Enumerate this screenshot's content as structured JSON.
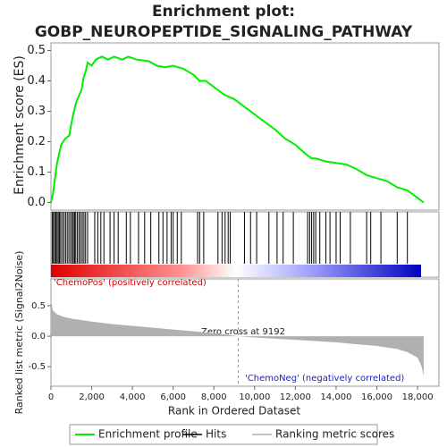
{
  "chart_data": {
    "type": "gsea",
    "title": "Enrichment plot:",
    "subtitle": "GOBP_NEUROPEPTIDE_SIGNALING_PATHWAY",
    "ylabel": "Enrichment score (ES)",
    "y2label": "Ranked list metric (Signal2Noise)",
    "xlabel": "Rank in Ordered Dataset",
    "xlim": [
      0,
      19050
    ],
    "xticks": [
      0,
      {
        "value": 2000,
        "label": "2,000"
      },
      {
        "value": 4000,
        "label": "4,000"
      },
      {
        "value": 6000,
        "label": "6,000"
      },
      {
        "value": 8000,
        "label": "8,000"
      },
      {
        "value": 10000,
        "label": "10,000"
      },
      {
        "value": 12000,
        "label": "12,000"
      },
      {
        "value": 14000,
        "label": "14,000"
      },
      {
        "value": 16000,
        "label": "16,000"
      },
      {
        "value": 18000,
        "label": "18,000"
      }
    ],
    "ylim": [
      -0.025,
      0.525
    ],
    "yticks": [
      {
        "value": 0,
        "label": "0.0"
      },
      0.1,
      0.2,
      0.3,
      0.4,
      0.5
    ],
    "y2lim": [
      -0.82,
      0.94
    ],
    "y2ticks": [
      0.5,
      {
        "value": 0,
        "label": "0.0"
      },
      -0.5
    ],
    "series": [
      {
        "name": "Enrichment profile",
        "color": "#00ee00",
        "x": [
          0,
          100,
          200,
          300,
          400,
          500,
          700,
          900,
          1000,
          1100,
          1200,
          1300,
          1500,
          1600,
          1700,
          1800,
          2000,
          2200,
          2500,
          2800,
          3100,
          3500,
          3800,
          4200,
          4800,
          5200,
          5600,
          6000,
          6500,
          7000,
          7300,
          7600,
          8000,
          8500,
          9000,
          9500,
          10000,
          10500,
          11000,
          11500,
          12000,
          12500,
          12800,
          13000,
          13500,
          14000,
          14500,
          15000,
          15500,
          16000,
          16500,
          17000,
          17500,
          18000,
          18300
        ],
        "values": [
          0,
          0.03,
          0.08,
          0.13,
          0.16,
          0.19,
          0.21,
          0.22,
          0.26,
          0.29,
          0.32,
          0.34,
          0.37,
          0.41,
          0.43,
          0.46,
          0.45,
          0.47,
          0.48,
          0.47,
          0.48,
          0.47,
          0.48,
          0.47,
          0.465,
          0.45,
          0.445,
          0.45,
          0.44,
          0.42,
          0.4,
          0.4,
          0.38,
          0.355,
          0.34,
          0.315,
          0.29,
          0.265,
          0.24,
          0.21,
          0.19,
          0.16,
          0.145,
          0.145,
          0.135,
          0.13,
          0.125,
          0.11,
          0.09,
          0.08,
          0.07,
          0.05,
          0.04,
          0.015,
          0
        ]
      },
      {
        "name": "Hits",
        "color": "#000000",
        "x": [
          60,
          120,
          180,
          240,
          300,
          360,
          420,
          480,
          560,
          640,
          720,
          800,
          880,
          960,
          1040,
          1100,
          1160,
          1220,
          1300,
          1380,
          1460,
          1540,
          1620,
          1700,
          1800,
          2150,
          2300,
          2450,
          2600,
          2900,
          3100,
          3300,
          3700,
          3900,
          4300,
          4600,
          4900,
          5300,
          5500,
          5700,
          5900,
          6000,
          6200,
          6400,
          7200,
          7300,
          7500,
          8200,
          8400,
          8550,
          8700,
          8800,
          9500,
          9800,
          10100,
          10700,
          11100,
          11400,
          11900,
          12600,
          12700,
          12800,
          12900,
          13000,
          13200,
          13500,
          13700,
          14000,
          14200,
          14700,
          15500,
          15700,
          16200,
          17000,
          17500
        ]
      },
      {
        "name": "Ranking metric scores",
        "color": "#b0b0b0",
        "axis": "y2",
        "x": [
          0,
          100,
          300,
          600,
          1000,
          2000,
          3000,
          4000,
          5000,
          6000,
          7000,
          8000,
          9192,
          10000,
          11000,
          12000,
          13000,
          14000,
          15000,
          16000,
          17000,
          17500,
          18000,
          18200,
          18300
        ],
        "values": [
          0.6,
          0.42,
          0.36,
          0.32,
          0.29,
          0.24,
          0.2,
          0.17,
          0.14,
          0.11,
          0.08,
          0.05,
          0,
          -0.02,
          -0.04,
          -0.06,
          -0.08,
          -0.1,
          -0.13,
          -0.16,
          -0.21,
          -0.26,
          -0.35,
          -0.5,
          -0.65
        ]
      }
    ],
    "zero_cross": 9192,
    "annotations": [
      "'ChemoPos' (positively correlated)",
      "Zero cross at 9192",
      "'ChemoNeg' (negatively correlated)"
    ]
  }
}
